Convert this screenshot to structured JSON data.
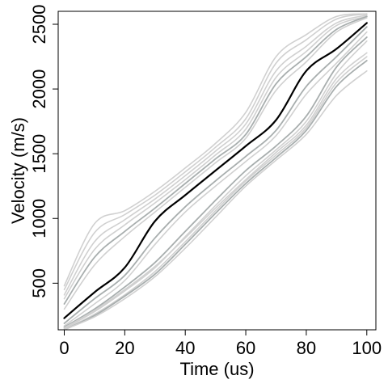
{
  "chart_data": {
    "type": "line",
    "xlabel": "Time (us)",
    "ylabel": "Velocity (m/s)",
    "xlim": [
      -2,
      103
    ],
    "ylim": [
      140,
      2600
    ],
    "x_ticks": [
      0,
      20,
      40,
      60,
      80,
      100
    ],
    "x_tick_labels": [
      "0",
      "20",
      "40",
      "60",
      "80",
      "100"
    ],
    "y_ticks": [
      500,
      1000,
      1500,
      2000,
      2500
    ],
    "y_tick_labels": [
      "500",
      "1000",
      "1500",
      "2000",
      "2500"
    ],
    "grid": false,
    "colors": {
      "highlight": "#000000",
      "light": "#d0d0d0",
      "mid": "#a8aeae"
    },
    "x": [
      0,
      10,
      20,
      30,
      40,
      50,
      60,
      70,
      80,
      90,
      100
    ],
    "series": [
      {
        "highlight": true,
        "shade": "dark",
        "values": [
          230,
          430,
          620,
          980,
          1180,
          1370,
          1560,
          1760,
          2140,
          2310,
          2510
        ]
      },
      {
        "highlight": false,
        "shade": "light",
        "values": [
          480,
          960,
          1060,
          1210,
          1390,
          1580,
          1820,
          2250,
          2420,
          2560,
          2580
        ]
      },
      {
        "highlight": false,
        "shade": "light",
        "values": [
          450,
          890,
          1030,
          1180,
          1360,
          1550,
          1770,
          2200,
          2380,
          2540,
          2580
        ]
      },
      {
        "highlight": false,
        "shade": "light",
        "values": [
          410,
          820,
          990,
          1150,
          1330,
          1520,
          1730,
          2140,
          2330,
          2510,
          2570
        ]
      },
      {
        "highlight": false,
        "shade": "light",
        "values": [
          380,
          760,
          950,
          1120,
          1300,
          1490,
          1690,
          2090,
          2290,
          2490,
          2560
        ]
      },
      {
        "highlight": false,
        "shade": "mid",
        "values": [
          340,
          700,
          900,
          1080,
          1270,
          1460,
          1650,
          2040,
          2250,
          2460,
          2560
        ]
      },
      {
        "highlight": false,
        "shade": "light",
        "values": [
          300,
          640,
          860,
          1050,
          1240,
          1430,
          1620,
          1990,
          2210,
          2440,
          2550
        ]
      },
      {
        "highlight": false,
        "shade": "mid",
        "values": [
          190,
          380,
          560,
          850,
          1090,
          1290,
          1480,
          1680,
          2020,
          2250,
          2480
        ]
      },
      {
        "highlight": false,
        "shade": "light",
        "values": [
          170,
          340,
          520,
          800,
          1050,
          1250,
          1440,
          1640,
          1960,
          2200,
          2440
        ]
      },
      {
        "highlight": false,
        "shade": "mid",
        "values": [
          160,
          300,
          470,
          660,
          900,
          1140,
          1370,
          1560,
          1790,
          2170,
          2400
        ]
      },
      {
        "highlight": false,
        "shade": "light",
        "values": [
          150,
          280,
          440,
          620,
          860,
          1100,
          1330,
          1530,
          1750,
          2120,
          2370
        ]
      },
      {
        "highlight": false,
        "shade": "light",
        "values": [
          155,
          290,
          450,
          630,
          850,
          1080,
          1300,
          1510,
          1720,
          2080,
          2280
        ]
      },
      {
        "highlight": false,
        "shade": "light",
        "values": [
          145,
          260,
          410,
          590,
          820,
          1060,
          1290,
          1490,
          1700,
          2050,
          2250
        ]
      },
      {
        "highlight": false,
        "shade": "mid",
        "values": [
          140,
          250,
          400,
          570,
          800,
          1040,
          1270,
          1470,
          1680,
          2020,
          2220
        ]
      },
      {
        "highlight": false,
        "shade": "light",
        "values": [
          142,
          240,
          380,
          550,
          770,
          1010,
          1250,
          1450,
          1650,
          1950,
          2140
        ]
      }
    ]
  }
}
